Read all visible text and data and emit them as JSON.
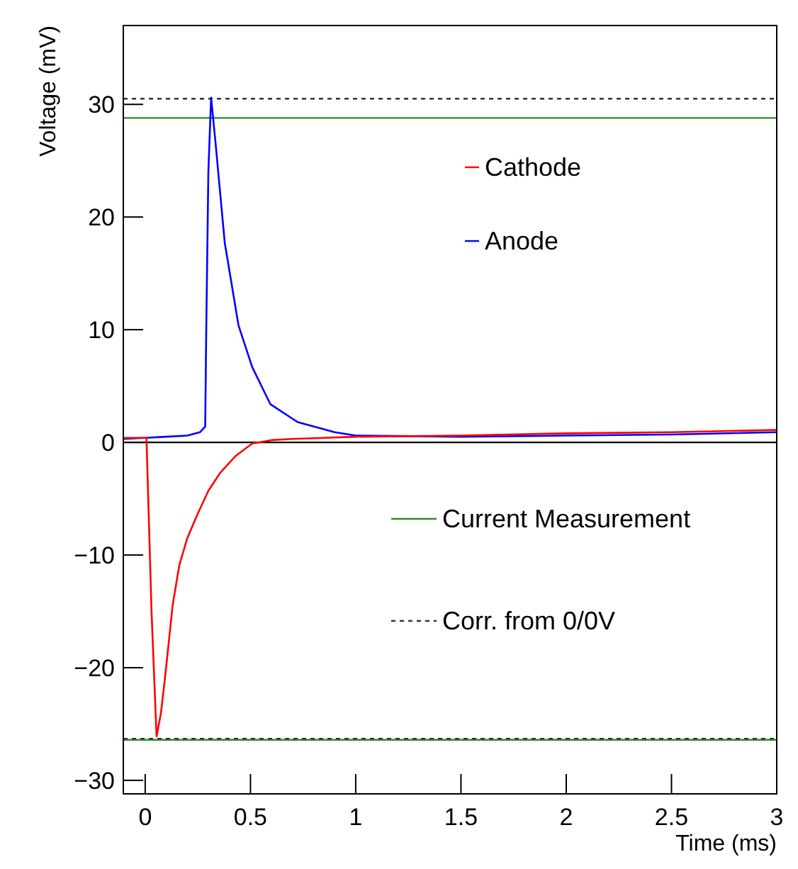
{
  "chart_data": {
    "type": "line",
    "xlabel": "Time (ms)",
    "ylabel": "Voltage (mV)",
    "xlim": [
      -0.104,
      3
    ],
    "ylim": [
      -31.2,
      37
    ],
    "xticks": [
      0,
      0.5,
      1,
      1.5,
      2,
      2.5,
      3
    ],
    "yticks": [
      {
        "value": -30,
        "label": "−30"
      },
      {
        "value": -20,
        "label": "−20"
      },
      {
        "value": -10,
        "label": "−10"
      },
      0,
      10,
      20,
      30
    ],
    "grid": false,
    "legend": "right",
    "line_style": "solid",
    "series": [
      {
        "name": "Cathode",
        "color": "#ff0000",
        "x": [
          -0.104,
          0,
          0.006,
          0.03,
          0.054,
          0.075,
          0.097,
          0.13,
          0.162,
          0.2,
          0.248,
          0.3,
          0.356,
          0.43,
          0.508,
          0.6,
          0.7,
          0.85,
          1,
          1.5,
          2,
          2.5,
          3
        ],
        "values": [
          0.4,
          0.4,
          0.4,
          -15,
          -26.1,
          -24,
          -20.4,
          -14.5,
          -10.9,
          -8.5,
          -6.4,
          -4.3,
          -2.7,
          -1.2,
          -0.1,
          0.2,
          0.3,
          0.4,
          0.5,
          0.6,
          0.8,
          0.9,
          1.1
        ]
      },
      {
        "name": "Anode",
        "color": "#0000ff",
        "x": [
          -0.104,
          0,
          0.1,
          0.2,
          0.26,
          0.285,
          0.29,
          0.3,
          0.313,
          0.335,
          0.378,
          0.443,
          0.508,
          0.594,
          0.724,
          0.9,
          1,
          1.5,
          2,
          2.5,
          3
        ],
        "values": [
          0.3,
          0.4,
          0.5,
          0.6,
          0.9,
          1.4,
          10,
          24,
          30.6,
          26.4,
          17.7,
          10.4,
          6.7,
          3.4,
          1.8,
          0.9,
          0.6,
          0.5,
          0.6,
          0.7,
          0.9
        ]
      }
    ],
    "ref_lines": [
      {
        "axis": "y",
        "value": 0,
        "color": "#000000",
        "line_style": "solid"
      },
      {
        "axis": "y",
        "value": 28.8,
        "color": "#2e8b22",
        "line_style": "solid",
        "label": "Current Measurement"
      },
      {
        "axis": "y",
        "value": -26.4,
        "color": "#2e8b22",
        "line_style": "solid"
      },
      {
        "axis": "y",
        "value": 30.5,
        "color": "#333333",
        "line_style": "dotted",
        "label": "Corr. from 0/0V"
      },
      {
        "axis": "y",
        "value": -26.3,
        "color": "#333333",
        "line_style": "dotted"
      }
    ]
  }
}
